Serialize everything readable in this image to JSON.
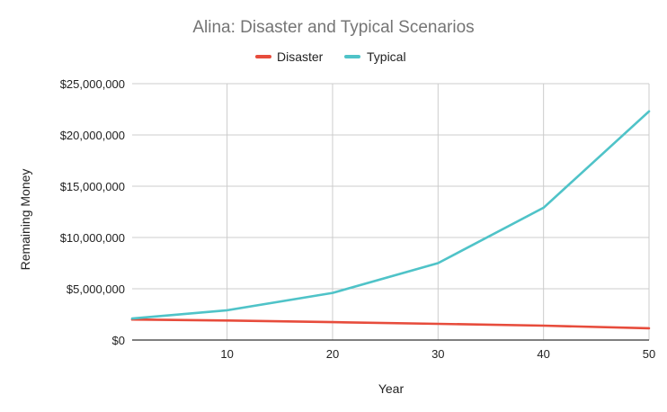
{
  "chart_data": {
    "type": "line",
    "title": "Alina: Disaster and Typical Scenarios",
    "xlabel": "Year",
    "ylabel": "Remaining Money",
    "xlim": [
      1,
      50
    ],
    "ylim": [
      0,
      25000000
    ],
    "x_ticks": [
      10,
      20,
      30,
      40,
      50
    ],
    "y_ticks": [
      0,
      5000000,
      10000000,
      15000000,
      20000000,
      25000000
    ],
    "y_tick_labels": [
      "$0",
      "$5,000,000",
      "$10,000,000",
      "$15,000,000",
      "$20,000,000",
      "$25,000,000"
    ],
    "grid": true,
    "legend_position": "top",
    "series": [
      {
        "name": "Disaster",
        "color": "#e74c3c",
        "x": [
          1,
          10,
          20,
          30,
          40,
          50
        ],
        "values": [
          2000000,
          1900000,
          1750000,
          1580000,
          1400000,
          1150000
        ]
      },
      {
        "name": "Typical",
        "color": "#4fc3c8",
        "x": [
          1,
          10,
          20,
          30,
          40,
          50
        ],
        "values": [
          2100000,
          2900000,
          4600000,
          7500000,
          12900000,
          22300000
        ]
      }
    ]
  }
}
